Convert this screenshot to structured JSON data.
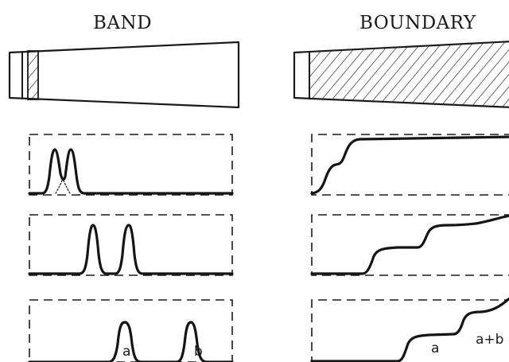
{
  "columns": {
    "band": {
      "title": "BAND"
    },
    "boundary": {
      "title": "BOUNDARY"
    }
  },
  "band_rows": [
    {
      "peaks": []
    },
    {
      "peaks": []
    },
    {
      "peaks": [
        {
          "label": "a"
        },
        {
          "label": "b"
        }
      ]
    }
  ],
  "boundary_rows": [
    {
      "steps": []
    },
    {
      "steps": []
    },
    {
      "steps": [
        {
          "label": "a"
        },
        {
          "label": "a+b"
        }
      ]
    }
  ]
}
